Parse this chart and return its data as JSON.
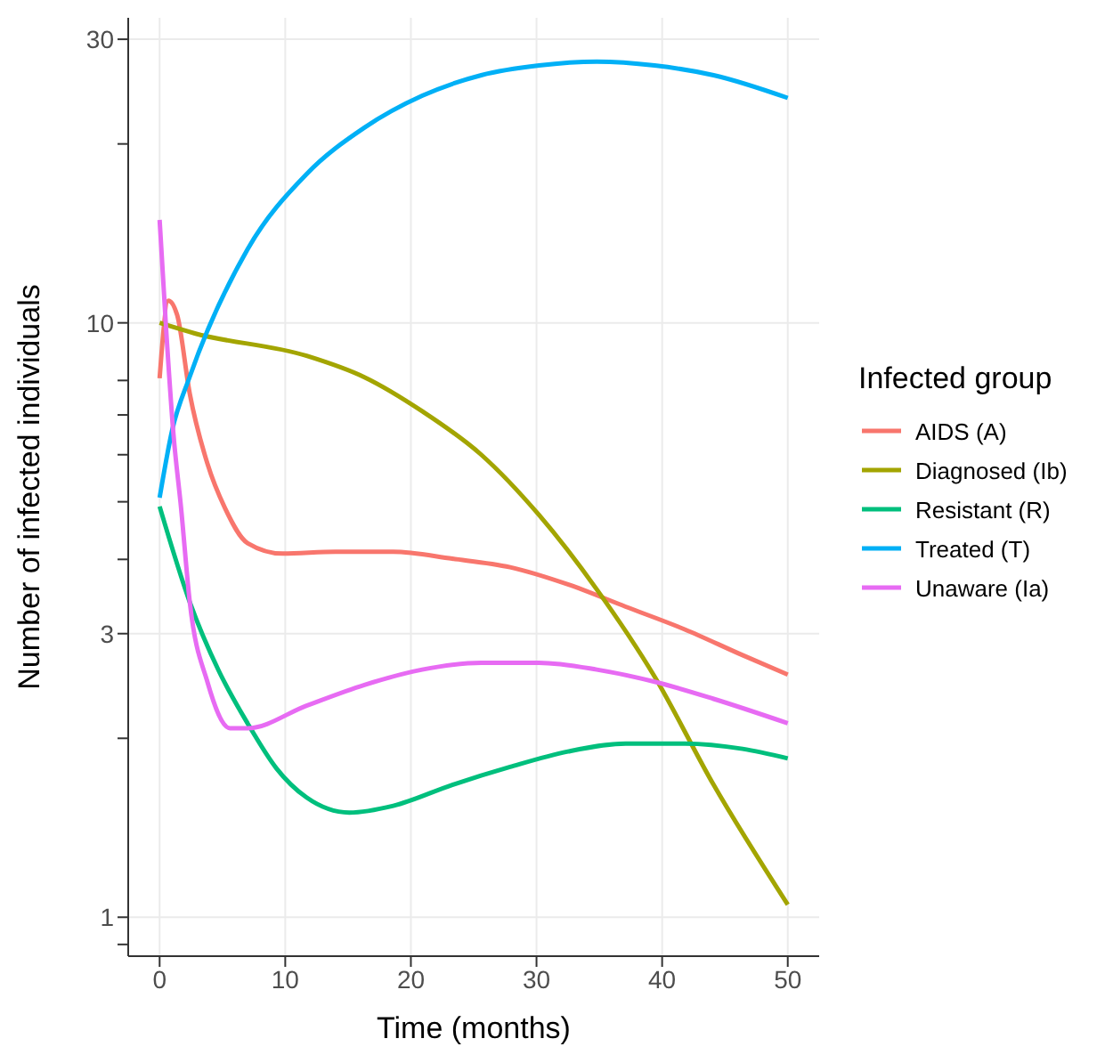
{
  "chart_data": {
    "type": "line",
    "xlabel": "Time (months)",
    "ylabel": "Number of infected individuals",
    "legend_title": "Infected group",
    "legend": "right",
    "grid": true,
    "log": "y",
    "line_style": "solid",
    "marker": "none",
    "xlim": [
      -2.5,
      52.5
    ],
    "xticks": [
      0,
      10,
      20,
      30,
      40,
      50
    ],
    "ylim": [
      0.86,
      32.6
    ],
    "yticks": [
      30,
      {
        "value": 20,
        "label": null
      },
      10,
      {
        "value": 8,
        "label": null
      },
      {
        "value": 7,
        "label": null
      },
      {
        "value": 6,
        "label": null
      },
      {
        "value": 5,
        "label": null
      },
      {
        "value": 4,
        "label": null
      },
      3,
      {
        "value": 2,
        "label": null
      },
      1,
      {
        "value": 0.9,
        "label": null
      }
    ],
    "series": [
      {
        "name": "AIDS (A)",
        "color": "#f8766d",
        "x": [
          0,
          0.7,
          1.4,
          2.4,
          3.8,
          5.2,
          7,
          9.8,
          14,
          18.6,
          23.3,
          27.9,
          32.5,
          37.1,
          41.8,
          46.4,
          50
        ],
        "values": [
          8.07,
          10.9,
          10.3,
          7.6,
          5.8,
          4.88,
          4.26,
          4.09,
          4.12,
          4.12,
          4.01,
          3.88,
          3.63,
          3.33,
          3.05,
          2.76,
          2.56
        ]
      },
      {
        "name": "Diagnosed (Ib)",
        "color": "#a3a500",
        "x": [
          0,
          2.8,
          11.7,
          16.3,
          20.9,
          25.6,
          30.2,
          34.8,
          39.4,
          44.1,
          50
        ],
        "values": [
          10,
          9.6,
          8.8,
          8.1,
          7.1,
          6.0,
          4.75,
          3.56,
          2.54,
          1.67,
          1.05
        ]
      },
      {
        "name": "Resistant (R)",
        "color": "#00bf7d",
        "x": [
          0,
          2.4,
          4.7,
          7,
          9.3,
          11.7,
          15.1,
          18.6,
          23.3,
          27.9,
          32.5,
          37.1,
          41.8,
          46.4,
          50
        ],
        "values": [
          4.91,
          3.39,
          2.6,
          2.12,
          1.78,
          1.59,
          1.5,
          1.54,
          1.67,
          1.79,
          1.9,
          1.96,
          1.96,
          1.92,
          1.85
        ]
      },
      {
        "name": "Treated (T)",
        "color": "#00b0f6",
        "x": [
          0,
          1,
          2.4,
          7,
          11.7,
          16.3,
          20.9,
          25.6,
          30.2,
          34.8,
          39.4,
          44.1,
          50
        ],
        "values": [
          5.08,
          6.6,
          8.12,
          13.3,
          17.8,
          21.3,
          24.1,
          26.1,
          27.1,
          27.5,
          27.1,
          26.1,
          23.9
        ]
      },
      {
        "name": "Unaware (Ia)",
        "color": "#e76bf3",
        "x": [
          0,
          0.5,
          1.1,
          1.7,
          2.4,
          3.8,
          5.6,
          7,
          11.7,
          16.3,
          20.9,
          25.6,
          30.2,
          34.8,
          39.4,
          44.1,
          50
        ],
        "values": [
          14.9,
          9.9,
          6.5,
          4.9,
          3.39,
          2.49,
          2.08,
          2.08,
          2.27,
          2.46,
          2.61,
          2.68,
          2.68,
          2.61,
          2.49,
          2.33,
          2.12
        ]
      }
    ]
  }
}
